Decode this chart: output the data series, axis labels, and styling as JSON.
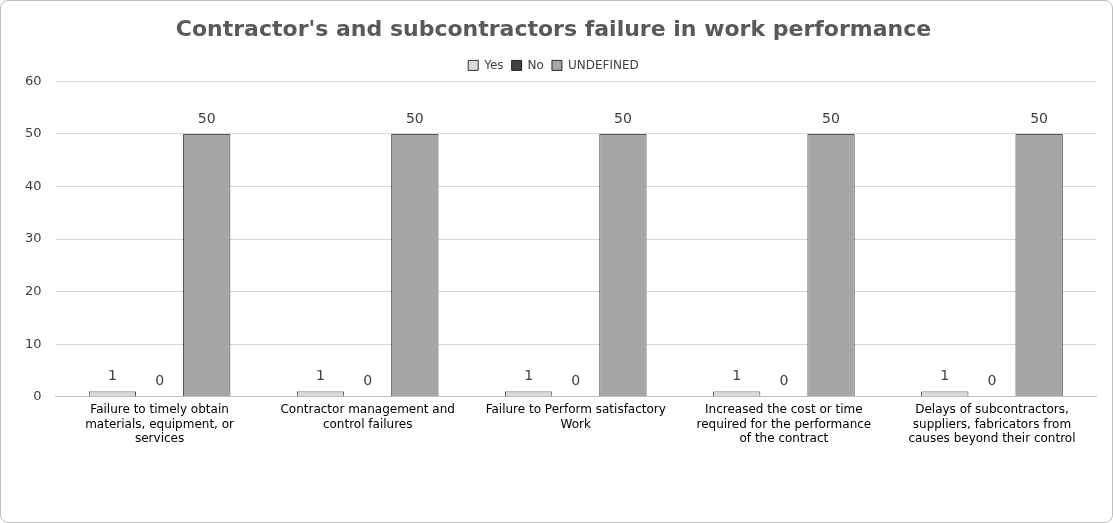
{
  "chart_data": {
    "type": "bar",
    "title": "Contractor's and subcontractors failure in work performance",
    "categories": [
      "Failure to timely obtain materials, equipment, or services",
      "Contractor management and control failures",
      "Failure to Perform satisfactory Work",
      "Increased the cost or time required for the performance of the contract",
      "Delays of subcontractors, suppliers, fabricators from causes beyond their control"
    ],
    "series": [
      {
        "name": "Yes",
        "color": "#d9d9d9",
        "values": [
          1,
          1,
          1,
          1,
          1
        ]
      },
      {
        "name": "No",
        "color": "#404040",
        "values": [
          0,
          0,
          0,
          0,
          0
        ]
      },
      {
        "name": "UNDEFINED",
        "color": "#a6a6a6",
        "values": [
          50,
          50,
          50,
          50,
          50
        ]
      }
    ],
    "ylim": [
      0,
      60
    ],
    "yticks": [
      0,
      10,
      20,
      30,
      40,
      50,
      60
    ],
    "grid": "y",
    "legend": "top",
    "data_labels": true
  }
}
